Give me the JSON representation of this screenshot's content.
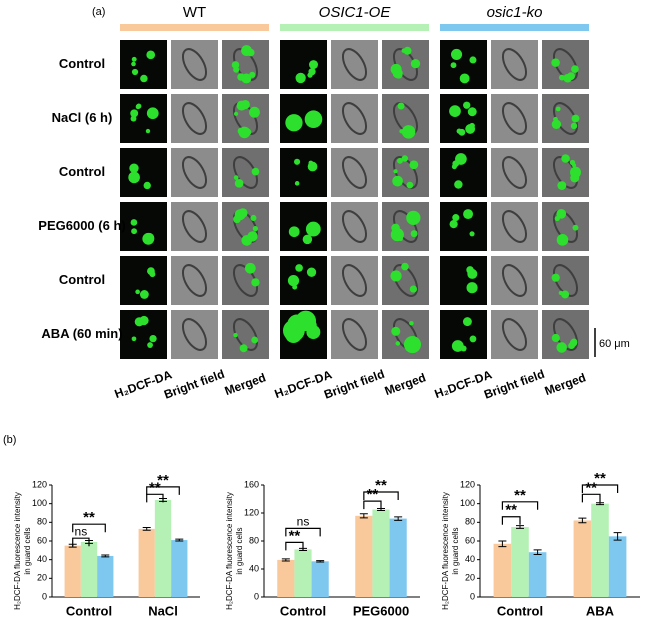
{
  "panel_a": {
    "label": "(a)",
    "groups": [
      "WT",
      "OSIC1-OE",
      "osic1-ko"
    ],
    "group_colors": [
      "#f9c89b",
      "#b5f0b5",
      "#7ec8f0"
    ],
    "rows": [
      "Control",
      "NaCl (6 h)",
      "Control",
      "PEG6000 (6 h)",
      "Control",
      "ABA (60 min)"
    ],
    "columns": [
      "H₂DCF-DA",
      "Bright field",
      "Merged"
    ],
    "scale_bar": "60 μm"
  },
  "panel_b_label": "(b)",
  "chart_data": [
    {
      "type": "bar",
      "ylabel": [
        "H₂DCF-DA fluorescence intensity",
        "in guard cells"
      ],
      "categories": [
        "Control",
        "NaCl"
      ],
      "series": [
        {
          "color": "#f9c89b",
          "values": [
            55,
            73
          ],
          "errors": [
            1.5,
            1.5
          ]
        },
        {
          "color": "#b5f0b5",
          "values": [
            59,
            104
          ],
          "errors": [
            1.5,
            1.5
          ]
        },
        {
          "color": "#7ec8f0",
          "values": [
            44,
            61
          ],
          "errors": [
            1,
            1
          ]
        }
      ],
      "ylim": [
        0,
        120
      ],
      "yticks": [
        0,
        20,
        40,
        60,
        80,
        100,
        120
      ],
      "annotations": [
        "ns",
        "**",
        "**",
        "**"
      ]
    },
    {
      "type": "bar",
      "ylabel": [
        "H₂DCF-DA fluorescence intensity",
        "in guard cells"
      ],
      "categories": [
        "Control",
        "PEG6000"
      ],
      "series": [
        {
          "color": "#f9c89b",
          "values": [
            53,
            116
          ],
          "errors": [
            1.5,
            3
          ]
        },
        {
          "color": "#b5f0b5",
          "values": [
            68,
            125
          ],
          "errors": [
            1.5,
            1.5
          ]
        },
        {
          "color": "#7ec8f0",
          "values": [
            51,
            112
          ],
          "errors": [
            1,
            2.5
          ]
        }
      ],
      "ylim": [
        0,
        160
      ],
      "yticks": [
        0,
        40,
        80,
        120,
        160
      ],
      "annotations": [
        "**",
        "ns",
        "**",
        "**"
      ]
    },
    {
      "type": "bar",
      "ylabel": [
        "H₂DCF-DA fluorescence intensity",
        "in guard cells"
      ],
      "categories": [
        "Control",
        "ABA"
      ],
      "series": [
        {
          "color": "#f9c89b",
          "values": [
            57,
            82
          ],
          "errors": [
            3,
            2.5
          ]
        },
        {
          "color": "#b5f0b5",
          "values": [
            75,
            100
          ],
          "errors": [
            1.5,
            1
          ]
        },
        {
          "color": "#7ec8f0",
          "values": [
            48,
            65
          ],
          "errors": [
            2.5,
            4
          ]
        }
      ],
      "ylim": [
        0,
        120
      ],
      "yticks": [
        0,
        20,
        40,
        60,
        80,
        100,
        120
      ],
      "annotations": [
        "**",
        "**",
        "**",
        "**"
      ]
    }
  ]
}
